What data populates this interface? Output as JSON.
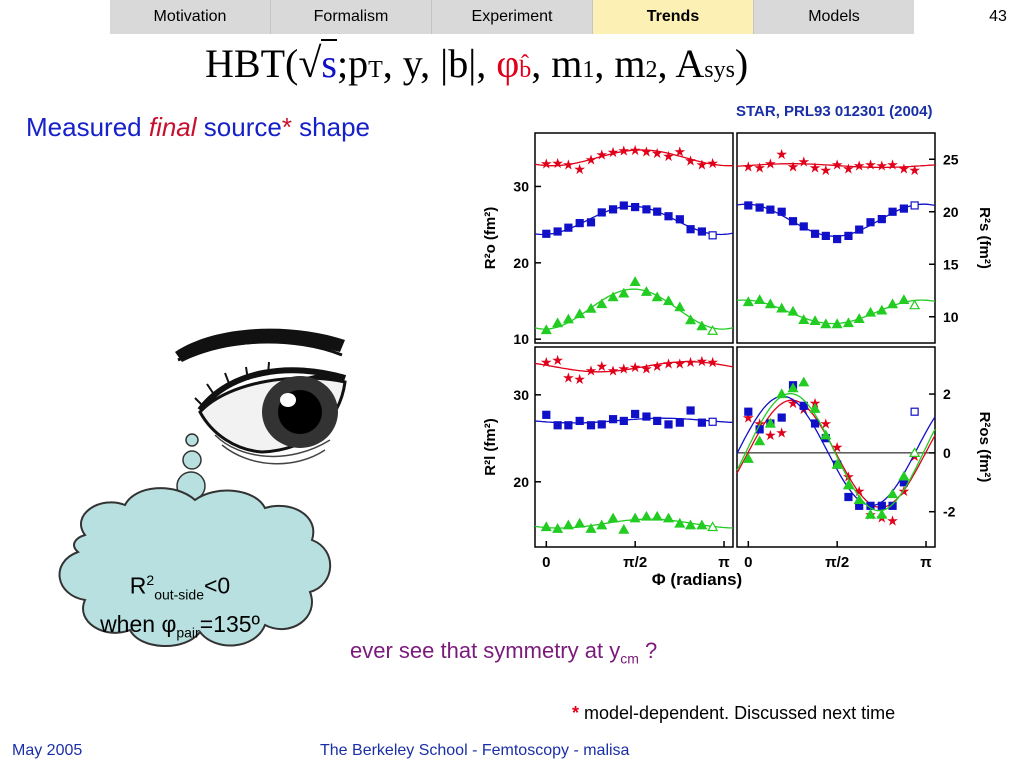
{
  "nav": {
    "tabs": [
      {
        "label": "Motivation",
        "active": false
      },
      {
        "label": "Formalism",
        "active": false
      },
      {
        "label": "Experiment",
        "active": false
      },
      {
        "label": "Trends",
        "active": true
      },
      {
        "label": "Models",
        "active": false
      }
    ],
    "page_number": "43"
  },
  "formula": {
    "lead": "HBT(",
    "sqrt_s": "s",
    "part2": ";p",
    "sub_T": "T",
    "part3": ", y, |",
    "b": "b",
    "part4": "|, ",
    "phi": "φ",
    "phi_sub": "b̂",
    "part5": ", m",
    "sub1": "1",
    "part6": ", m",
    "sub2": "2",
    "part7": ", A",
    "sub_sys": "sys",
    "close": ")"
  },
  "source_ref": "STAR, PRL93 012301 (2004)",
  "heading": {
    "part1": "Measured ",
    "final": "final",
    "part2": " source",
    "star": "*",
    "part3": " shape"
  },
  "cloud": {
    "r": "R",
    "sup": "2",
    "sub": "out-side",
    "rest": "<0",
    "when": "when ",
    "phi": "φ",
    "pair": "pair",
    "value": "=135º"
  },
  "question": {
    "text": "ever see that symmetry at y",
    "sub": "cm",
    "end": " ?"
  },
  "footnote": {
    "star": "*",
    "text": " model-dependent.  Discussed next time"
  },
  "footer": {
    "date": "May 2005",
    "title": "The Berkeley School - Femtoscopy - malisa"
  },
  "colors": {
    "red": "#e1001a",
    "blue": "#1010c8",
    "green": "#22cc22"
  },
  "chart_data": [
    {
      "type": "scatter",
      "name": "Ro2",
      "ylabel": "R²o (fm²)",
      "yticks": [
        "10",
        "20",
        "30"
      ],
      "ytick_values": [
        10,
        20,
        30
      ],
      "ylim": [
        9.5,
        37
      ],
      "xlim": [
        -0.2,
        3.3
      ],
      "series": [
        {
          "marker": "star",
          "color": "#e1001a",
          "x": [
            0,
            0.2,
            0.39,
            0.59,
            0.79,
            0.98,
            1.18,
            1.37,
            1.57,
            1.77,
            1.96,
            2.16,
            2.36,
            2.55,
            2.75,
            2.94
          ],
          "y": [
            33.0,
            33.1,
            32.9,
            32.3,
            33.5,
            34.2,
            34.5,
            34.7,
            34.8,
            34.6,
            34.4,
            34.0,
            34.6,
            33.4,
            32.9,
            33.1
          ]
        },
        {
          "marker": "square",
          "color": "#1010c8",
          "x": [
            0,
            0.2,
            0.39,
            0.59,
            0.79,
            0.98,
            1.18,
            1.37,
            1.57,
            1.77,
            1.96,
            2.16,
            2.36,
            2.55,
            2.75,
            2.94
          ],
          "y": [
            23.8,
            24.1,
            24.6,
            25.2,
            25.3,
            26.6,
            27.0,
            27.5,
            27.3,
            27.0,
            26.7,
            26.1,
            25.7,
            24.4,
            24.1,
            23.6
          ]
        },
        {
          "marker": "triangle",
          "color": "#22cc22",
          "x": [
            0,
            0.2,
            0.39,
            0.59,
            0.79,
            0.98,
            1.18,
            1.37,
            1.57,
            1.77,
            1.96,
            2.16,
            2.36,
            2.55,
            2.75,
            2.94
          ],
          "y": [
            11.2,
            12.1,
            12.6,
            13.3,
            14.0,
            14.6,
            15.5,
            16.0,
            17.5,
            16.2,
            15.5,
            15.0,
            14.2,
            12.5,
            11.7,
            11.1
          ]
        }
      ]
    },
    {
      "type": "scatter",
      "name": "Rs2",
      "ylabel": "R²s (fm²)",
      "yticks": [
        "10",
        "15",
        "20",
        "25"
      ],
      "ytick_values": [
        10,
        15,
        20,
        25
      ],
      "ylim": [
        7.5,
        27.5
      ],
      "xlim": [
        -0.2,
        3.3
      ],
      "series": [
        {
          "marker": "star",
          "color": "#e1001a",
          "x": [
            0,
            0.2,
            0.39,
            0.59,
            0.79,
            0.98,
            1.18,
            1.37,
            1.57,
            1.77,
            1.96,
            2.16,
            2.36,
            2.55,
            2.75,
            2.94
          ],
          "y": [
            24.3,
            24.2,
            24.6,
            25.5,
            24.3,
            24.8,
            24.2,
            24.0,
            24.5,
            24.1,
            24.4,
            24.5,
            24.4,
            24.5,
            24.1,
            24.0
          ]
        },
        {
          "marker": "square",
          "color": "#1010c8",
          "x": [
            0,
            0.2,
            0.39,
            0.59,
            0.79,
            0.98,
            1.18,
            1.37,
            1.57,
            1.77,
            1.96,
            2.16,
            2.36,
            2.55,
            2.75,
            2.94
          ],
          "y": [
            20.6,
            20.4,
            20.2,
            20.0,
            19.1,
            18.6,
            17.9,
            17.7,
            17.4,
            17.7,
            18.3,
            19.0,
            19.3,
            20.0,
            20.3,
            20.6
          ]
        },
        {
          "marker": "triangle",
          "color": "#22cc22",
          "x": [
            0,
            0.2,
            0.39,
            0.59,
            0.79,
            0.98,
            1.18,
            1.37,
            1.57,
            1.77,
            1.96,
            2.16,
            2.36,
            2.55,
            2.75,
            2.94
          ],
          "y": [
            11.4,
            11.6,
            11.2,
            10.8,
            10.5,
            9.7,
            9.6,
            9.3,
            9.3,
            9.4,
            9.8,
            10.4,
            10.6,
            11.2,
            11.6,
            11.1
          ]
        }
      ]
    },
    {
      "type": "scatter",
      "name": "Rl2",
      "ylabel": "R²l (fm²)",
      "yticks": [
        "20",
        "30"
      ],
      "ytick_values": [
        20,
        30
      ],
      "ylim": [
        12.5,
        35.5
      ],
      "xlim": [
        -0.2,
        3.3
      ],
      "xticks": [
        "0",
        "π/2",
        "π"
      ],
      "xtick_values": [
        0,
        1.5708,
        3.1416
      ],
      "series": [
        {
          "marker": "star",
          "color": "#e1001a",
          "x": [
            0,
            0.2,
            0.39,
            0.59,
            0.79,
            0.98,
            1.18,
            1.37,
            1.57,
            1.77,
            1.96,
            2.16,
            2.36,
            2.55,
            2.75,
            2.94
          ],
          "y": [
            33.8,
            34.0,
            32.0,
            31.8,
            32.8,
            33.3,
            32.8,
            33.0,
            33.2,
            33.0,
            33.3,
            33.6,
            33.6,
            33.8,
            33.9,
            33.8
          ]
        },
        {
          "marker": "square",
          "color": "#1010c8",
          "x": [
            0,
            0.2,
            0.39,
            0.59,
            0.79,
            0.98,
            1.18,
            1.37,
            1.57,
            1.77,
            1.96,
            2.16,
            2.36,
            2.55,
            2.75,
            2.94
          ],
          "y": [
            27.7,
            26.5,
            26.5,
            27.0,
            26.5,
            26.6,
            27.2,
            27.0,
            27.8,
            27.5,
            27.0,
            26.6,
            26.8,
            28.2,
            26.8,
            26.9
          ]
        },
        {
          "marker": "triangle",
          "color": "#22cc22",
          "x": [
            0,
            0.2,
            0.39,
            0.59,
            0.79,
            0.98,
            1.18,
            1.37,
            1.57,
            1.77,
            1.96,
            2.16,
            2.36,
            2.55,
            2.75,
            2.94
          ],
          "y": [
            14.8,
            14.6,
            15.0,
            15.2,
            14.6,
            15.0,
            15.8,
            14.5,
            15.8,
            16.0,
            16.0,
            15.8,
            15.2,
            15.0,
            15.0,
            14.8
          ]
        }
      ]
    },
    {
      "type": "scatter",
      "name": "Ros2",
      "ylabel": "R²os (fm²)",
      "yticks": [
        "-2",
        "0",
        "2"
      ],
      "ytick_values": [
        -2,
        0,
        2
      ],
      "ylim": [
        -3.2,
        3.6
      ],
      "xlim": [
        -0.2,
        3.3
      ],
      "xticks": [
        "0",
        "π/2",
        "π"
      ],
      "xtick_values": [
        0,
        1.5708,
        3.1416
      ],
      "xlabel": "Φ (radians)",
      "series": [
        {
          "marker": "star",
          "color": "#e1001a",
          "x": [
            0,
            0.2,
            0.39,
            0.59,
            0.79,
            0.98,
            1.18,
            1.37,
            1.57,
            1.77,
            1.96,
            2.16,
            2.36,
            2.55,
            2.75,
            2.94
          ],
          "y": [
            1.2,
            1.0,
            0.6,
            0.7,
            1.7,
            1.5,
            1.7,
            1.0,
            0.2,
            -0.8,
            -1.3,
            -2.1,
            -2.2,
            -2.3,
            -1.3,
            -0.1
          ]
        },
        {
          "marker": "square",
          "color": "#1010c8",
          "x": [
            0,
            0.2,
            0.39,
            0.59,
            0.79,
            0.98,
            1.18,
            1.37,
            1.57,
            1.77,
            1.96,
            2.16,
            2.36,
            2.55,
            2.75,
            2.94
          ],
          "y": [
            1.4,
            0.8,
            1.0,
            1.2,
            2.3,
            1.6,
            1.0,
            0.5,
            -0.4,
            -1.5,
            -1.8,
            -1.8,
            -1.8,
            -1.8,
            -1.0,
            1.4
          ]
        },
        {
          "marker": "triangle",
          "color": "#22cc22",
          "x": [
            0,
            0.2,
            0.39,
            0.59,
            0.79,
            0.98,
            1.18,
            1.37,
            1.57,
            1.77,
            1.96,
            2.16,
            2.36,
            2.55,
            2.75,
            2.94
          ],
          "y": [
            -0.2,
            0.4,
            1.0,
            2.0,
            2.2,
            2.4,
            1.5,
            0.6,
            -0.4,
            -1.1,
            -1.6,
            -2.1,
            -2.1,
            -1.4,
            -0.8,
            0.0
          ]
        }
      ]
    }
  ]
}
